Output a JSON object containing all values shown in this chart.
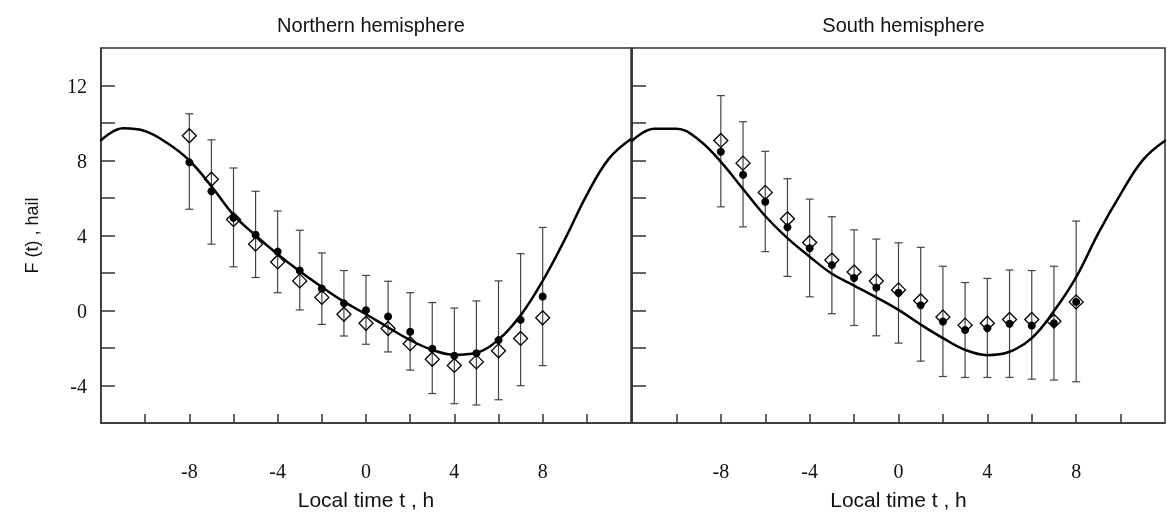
{
  "chart_data": [
    {
      "type": "scatter",
      "title": "Northern hemisphere",
      "xlabel": "Local time t , h",
      "ylabel": "F (t) , hail",
      "xlim": [
        -12,
        12
      ],
      "xticks": [
        {
          "value": -10,
          "label": null
        },
        -8,
        {
          "value": -6,
          "label": null
        },
        -4,
        {
          "value": -2,
          "label": null
        },
        0,
        {
          "value": 2,
          "label": null
        },
        4,
        {
          "value": 6,
          "label": null
        },
        8,
        {
          "value": 10,
          "label": null
        }
      ],
      "ylim": [
        -6,
        14
      ],
      "yticks": [
        -4,
        {
          "value": -2,
          "label": null
        },
        0,
        {
          "value": 2,
          "label": null
        },
        4,
        {
          "value": 6,
          "label": null
        },
        8,
        {
          "value": 10,
          "label": null
        },
        12
      ],
      "x": [
        -8,
        -7,
        -6,
        -5,
        -4,
        -3,
        -2,
        -1,
        0,
        1,
        2,
        3,
        4,
        5,
        6,
        7,
        8
      ],
      "series": [
        {
          "type": "line",
          "color": "#000000",
          "marker": "none",
          "line_style": "solid",
          "x": [
            -12,
            -11,
            -10,
            -9,
            -8,
            -7,
            -6,
            -5,
            -4,
            -3,
            -2,
            -1,
            0,
            1,
            2,
            3,
            4,
            5,
            6,
            7,
            8,
            9,
            10,
            11,
            12
          ],
          "values": [
            9.08,
            9.72,
            9.57,
            8.93,
            8.0,
            6.63,
            5.1,
            4.0,
            3.0,
            2.09,
            1.25,
            0.47,
            -0.2,
            -0.9,
            -1.58,
            -2.1,
            -2.36,
            -2.25,
            -1.55,
            -0.26,
            1.58,
            3.78,
            6.17,
            8.1,
            9.15
          ]
        },
        {
          "color": "#000000",
          "marker": "diamond",
          "values": [
            9.32,
            7.0,
            4.85,
            3.54,
            2.59,
            1.58,
            0.7,
            -0.2,
            -0.68,
            -0.96,
            -1.77,
            -2.6,
            -2.93,
            -2.74,
            -2.15,
            -1.49,
            -0.39
          ]
        },
        {
          "color": "#000000",
          "marker": "circle",
          "values": [
            7.9,
            6.36,
            4.94,
            4.04,
            3.14,
            2.13,
            1.17,
            0.38,
            0.01,
            -0.32,
            -1.13,
            -2.04,
            -2.41,
            -2.28,
            -1.58,
            -0.5,
            0.75
          ],
          "errors": [
            [
              5.4,
              10.49
            ],
            [
              3.54,
              9.1
            ],
            [
              2.33,
              7.6
            ],
            [
              1.76,
              6.36
            ],
            [
              0.95,
              5.31
            ],
            [
              0.03,
              4.28
            ],
            [
              -0.74,
              3.07
            ],
            [
              -1.36,
              2.13
            ],
            [
              -1.8,
              1.87
            ],
            [
              -2.21,
              1.56
            ],
            [
              -3.18,
              0.95
            ],
            [
              -4.43,
              0.42
            ],
            [
              -4.97,
              0.13
            ],
            [
              -5.04,
              0.51
            ],
            [
              -4.76,
              1.58
            ],
            [
              -4.01,
              3.03
            ],
            [
              -2.94,
              4.43
            ]
          ]
        }
      ]
    },
    {
      "type": "scatter",
      "title": "South hemisphere",
      "xlabel": "Local time t , h",
      "tick_labels": "x",
      "xlim": [
        -12,
        12
      ],
      "xticks": [
        {
          "value": -10,
          "label": null
        },
        -8,
        {
          "value": -6,
          "label": null
        },
        -4,
        {
          "value": -2,
          "label": null
        },
        0,
        {
          "value": 2,
          "label": null
        },
        4,
        {
          "value": 6,
          "label": null
        },
        8,
        {
          "value": 10,
          "label": null
        }
      ],
      "ylim": [
        -6,
        14
      ],
      "yticks": [
        {
          "value": -4,
          "label": null
        },
        {
          "value": -2,
          "label": null
        },
        {
          "value": 0,
          "label": null
        },
        {
          "value": 2,
          "label": null
        },
        {
          "value": 4,
          "label": null
        },
        {
          "value": 6,
          "label": null
        },
        {
          "value": 8,
          "label": null
        },
        {
          "value": 10,
          "label": null
        },
        {
          "value": 12,
          "label": null
        }
      ],
      "x": [
        -8,
        -7,
        -6,
        -5,
        -4,
        -3,
        -2,
        -1,
        0,
        1,
        2,
        3,
        4,
        5,
        6,
        7,
        8
      ],
      "series": [
        {
          "type": "line",
          "color": "#000000",
          "marker": "none",
          "line_style": "solid",
          "x": [
            -12,
            -11,
            -10,
            -9,
            -8,
            -7,
            -6,
            -5,
            -4,
            -3,
            -2,
            -1,
            0,
            1,
            2,
            3,
            4,
            5,
            6,
            7,
            8,
            9,
            10,
            11,
            12
          ],
          "values": [
            9.05,
            9.7,
            9.7,
            9.11,
            7.93,
            6.48,
            5.04,
            3.86,
            2.87,
            1.96,
            1.33,
            0.7,
            0.03,
            -0.75,
            -1.47,
            -2.1,
            -2.38,
            -2.2,
            -1.47,
            -0.03,
            1.78,
            4.13,
            6.21,
            8.02,
            9.05
          ]
        },
        {
          "color": "#000000",
          "marker": "diamond",
          "values": [
            9.07,
            7.86,
            6.3,
            4.89,
            3.63,
            2.69,
            2.05,
            1.57,
            1.1,
            0.52,
            -0.35,
            -0.78,
            -0.68,
            -0.48,
            -0.48,
            -0.57,
            0.46
          ]
        },
        {
          "color": "#000000",
          "marker": "circle",
          "values": [
            8.47,
            7.24,
            5.8,
            4.44,
            3.32,
            2.42,
            1.73,
            1.22,
            0.95,
            0.28,
            -0.59,
            -1.04,
            -0.95,
            -0.71,
            -0.8,
            -0.68,
            0.46
          ],
          "errors": [
            [
              5.53,
              11.46
            ],
            [
              4.46,
              10.07
            ],
            [
              3.14,
              8.49
            ],
            [
              1.82,
              7.03
            ],
            [
              0.73,
              5.94
            ],
            [
              -0.17,
              5.0
            ],
            [
              -0.8,
              4.3
            ],
            [
              -1.35,
              3.81
            ],
            [
              -1.74,
              3.61
            ],
            [
              -2.7,
              3.37
            ],
            [
              -3.52,
              2.36
            ],
            [
              -3.57,
              1.49
            ],
            [
              -3.57,
              1.71
            ],
            [
              -3.57,
              2.16
            ],
            [
              -3.66,
              2.13
            ],
            [
              -3.71,
              2.36
            ],
            [
              -3.8,
              4.77
            ]
          ]
        }
      ]
    }
  ]
}
